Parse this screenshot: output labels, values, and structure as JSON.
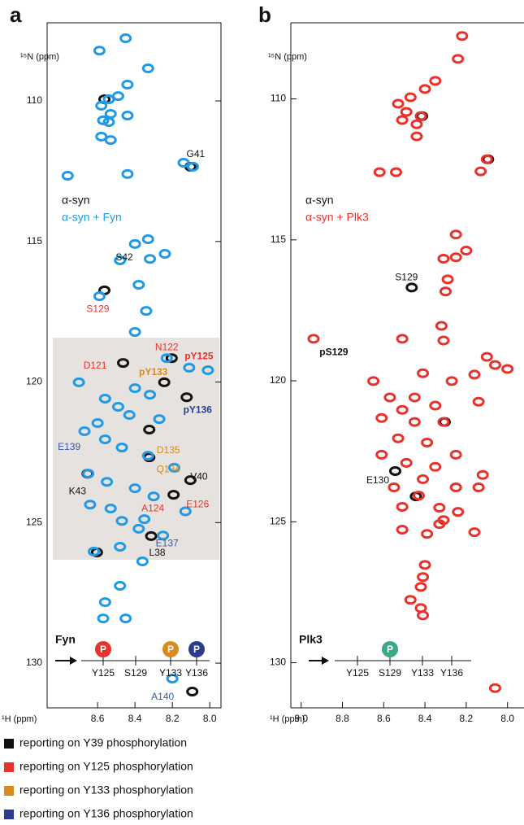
{
  "chart_data": [
    {
      "type": "scatter",
      "panel": "a",
      "x_label": "¹H (ppm)",
      "y_label": "¹⁵N (ppm)",
      "xlim": [
        8.87,
        7.94
      ],
      "ylim": [
        131.59,
        107.22
      ],
      "xticks": [
        8.6,
        8.4,
        8.2,
        {
          "value": 8,
          "label": "8.0"
        }
      ],
      "yticks": [
        110,
        115,
        120,
        125,
        130
      ],
      "series": [
        {
          "name": "α-syn",
          "color": "#111111",
          "x": [
            8.57,
            8.11,
            8.57,
            8.47,
            8.33,
            8.33,
            8.66,
            8.11,
            8.2,
            8.32,
            8.61,
            8.1,
            8.13,
            8.25,
            8.21
          ],
          "values": [
            109.94,
            112.34,
            116.74,
            119.32,
            121.69,
            122.68,
            123.26,
            123.49,
            124.01,
            125.48,
            126.06,
            131.01,
            120.54,
            120.01,
            119.15
          ]
        },
        {
          "name": "α-syn + Fyn",
          "color": "#1f9be6",
          "x": [
            8.59,
            8.45,
            8.33,
            8.44,
            8.49,
            8.54,
            8.58,
            8.53,
            8.57,
            8.54,
            8.58,
            8.53,
            8.44,
            8.76,
            8.14,
            8.09,
            8.44,
            8.33,
            8.4,
            8.24,
            8.32,
            8.48,
            8.38,
            8.59,
            8.34,
            8.4,
            8.23,
            8.11,
            8.01,
            8.7,
            8.4,
            8.32,
            8.56,
            8.49,
            8.43,
            8.6,
            8.27,
            8.67,
            8.56,
            8.47,
            8.33,
            8.19,
            8.65,
            8.55,
            8.4,
            8.3,
            8.64,
            8.53,
            8.47,
            8.38,
            8.62,
            8.48,
            8.36,
            8.56,
            8.45,
            8.57,
            8.48,
            8.2,
            8.35,
            8.25,
            8.13
          ],
          "values": [
            108.21,
            107.77,
            108.84,
            109.42,
            109.83,
            109.94,
            110.17,
            110.46,
            110.69,
            110.75,
            111.27,
            111.39,
            110.52,
            112.66,
            112.2,
            112.34,
            112.6,
            114.92,
            115.09,
            115.44,
            115.62,
            115.67,
            116.54,
            116.95,
            117.47,
            118.22,
            119.15,
            119.49,
            119.58,
            120.01,
            120.22,
            120.45,
            120.59,
            120.88,
            121.17,
            121.46,
            121.32,
            121.75,
            122.04,
            122.33,
            122.62,
            123.05,
            123.26,
            123.55,
            123.78,
            124.07,
            124.36,
            124.5,
            124.94,
            125.22,
            126.03,
            125.86,
            126.38,
            127.83,
            128.41,
            128.41,
            127.25,
            130.55,
            124.88,
            125.46,
            124.6
          ]
        }
      ],
      "annotations": [
        {
          "text": "G41",
          "color": "#111111",
          "x": 8.11,
          "y": 112.34
        },
        {
          "text": "S42",
          "color": "#111111",
          "x": 8.57,
          "y": 116.74
        },
        {
          "text": "S129",
          "color": "#e8322b",
          "x": 8.59,
          "y": 116.95
        },
        {
          "text": "N122",
          "color": "#e8322b",
          "x": 8.23,
          "y": 119.15
        },
        {
          "text": "pY125",
          "color": "#e8322b",
          "x": 8.21,
          "y": 119.15,
          "bold": true
        },
        {
          "text": "D121",
          "color": "#e8322b",
          "x": 8.47,
          "y": 119.32
        },
        {
          "text": "pY133",
          "color": "#d98a1c",
          "x": 8.25,
          "y": 120.01,
          "bold": true
        },
        {
          "text": "pY136",
          "color": "#2b3b8f",
          "x": 8.13,
          "y": 120.54,
          "bold": true
        },
        {
          "text": "D135",
          "color": "#d98a1c",
          "x": 8.33,
          "y": 121.69
        },
        {
          "text": "E139",
          "color": "#3a58a8",
          "x": 8.6,
          "y": 121.46
        },
        {
          "text": "Q134",
          "color": "#d98a1c",
          "x": 8.33,
          "y": 122.68
        },
        {
          "text": "V40",
          "color": "#111111",
          "x": 8.11,
          "y": 123.49
        },
        {
          "text": "K43",
          "color": "#111111",
          "x": 8.66,
          "y": 123.26
        },
        {
          "text": "A124",
          "color": "#e8322b",
          "x": 8.2,
          "y": 124.01
        },
        {
          "text": "E126",
          "color": "#e8322b",
          "x": 8.13,
          "y": 124.6
        },
        {
          "text": "E137",
          "color": "#3a58a8",
          "x": 8.25,
          "y": 125.46
        },
        {
          "text": "L38",
          "color": "#111111",
          "x": 8.32,
          "y": 125.48
        },
        {
          "text": "A140",
          "color": "#3a58a8",
          "x": 8.2,
          "y": 130.55
        }
      ],
      "track": {
        "enzyme": "Fyn",
        "sites": [
          {
            "name": "Y125",
            "mark": "P",
            "color": "#e8322b"
          },
          {
            "name": "S129"
          },
          {
            "name": "Y133",
            "mark": "P",
            "color": "#d98a1c"
          },
          {
            "name": "Y136",
            "mark": "P",
            "color": "#2b3b8f"
          }
        ]
      }
    },
    {
      "type": "scatter",
      "panel": "b",
      "x_label": "¹H (ppm)",
      "y_label": "¹⁵N (ppm)",
      "xlim": [
        9.05,
        7.92
      ],
      "ylim": [
        131.6,
        107.3
      ],
      "xticks": [
        {
          "value": 9,
          "label": "9.0"
        },
        8.8,
        8.6,
        8.4,
        8.2,
        {
          "value": 8,
          "label": "8.0"
        }
      ],
      "yticks": [
        110,
        115,
        120,
        125,
        130
      ],
      "series": [
        {
          "name": "α-syn",
          "color": "#111111",
          "x": [
            8.47,
            8.55,
            8.42,
            8.1,
            8.31,
            8.45
          ],
          "values": [
            116.69,
            123.2,
            110.61,
            112.14,
            121.46,
            124.1
          ]
        },
        {
          "name": "α-syn + Plk3",
          "color": "#e8322b",
          "x": [
            8.22,
            8.24,
            8.35,
            8.4,
            8.47,
            8.53,
            8.49,
            8.42,
            8.51,
            8.44,
            8.44,
            8.54,
            8.13,
            8.1,
            8.25,
            8.2,
            8.25,
            8.31,
            8.29,
            8.3,
            8.32,
            8.31,
            8.51,
            8.1,
            8.94,
            8.65,
            8.16,
            8.41,
            8.27,
            8.06,
            8.0,
            8.57,
            8.45,
            8.35,
            8.51,
            8.14,
            8.61,
            8.45,
            8.31,
            8.53,
            8.39,
            8.61,
            8.25,
            8.49,
            8.35,
            8.12,
            8.41,
            8.55,
            8.25,
            8.43,
            8.51,
            8.33,
            8.14,
            8.31,
            8.16,
            8.24,
            8.51,
            8.39,
            8.4,
            8.41,
            8.42,
            8.47,
            8.41,
            8.42,
            8.33,
            8.06,
            8.62
          ],
          "values": [
            107.77,
            108.58,
            109.36,
            109.65,
            109.94,
            110.17,
            110.46,
            110.61,
            110.75,
            110.9,
            111.33,
            112.6,
            112.57,
            112.14,
            114.81,
            115.38,
            115.62,
            115.67,
            116.4,
            116.83,
            118.05,
            118.57,
            118.51,
            119.15,
            118.51,
            120.01,
            119.78,
            119.73,
            120.01,
            119.44,
            119.58,
            120.59,
            120.59,
            120.88,
            121.03,
            120.74,
            121.32,
            121.46,
            121.46,
            122.04,
            122.19,
            122.62,
            122.62,
            122.91,
            123.05,
            123.34,
            123.49,
            123.78,
            123.78,
            124.07,
            124.47,
            124.5,
            123.78,
            124.94,
            125.37,
            124.65,
            125.28,
            125.43,
            126.53,
            126.96,
            127.31,
            127.77,
            128.32,
            128.06,
            125.08,
            130.9,
            112.6
          ]
        }
      ],
      "annotations": [
        {
          "text": "S129",
          "color": "#111111",
          "x": 8.47,
          "y": 116.69
        },
        {
          "text": "pS129",
          "color": "#111111",
          "x": 8.94,
          "y": 118.51,
          "bold": true
        },
        {
          "text": "E130",
          "color": "#111111",
          "x": 8.55,
          "y": 123.2
        }
      ],
      "track": {
        "enzyme": "Plk3",
        "sites": [
          {
            "name": "Y125"
          },
          {
            "name": "S129",
            "mark": "P",
            "color": "#3aa98b"
          },
          {
            "name": "Y133"
          },
          {
            "name": "Y136"
          }
        ]
      }
    }
  ],
  "key": [
    {
      "color": "#111111",
      "text": "reporting on Y39 phosphorylation"
    },
    {
      "color": "#e8322b",
      "text": "reporting on Y125 phosphorylation"
    },
    {
      "color": "#d98a1c",
      "text": "reporting on Y133 phosphorylation"
    },
    {
      "color": "#2b3b8f",
      "text": "reporting on Y136 phosphorylation"
    }
  ]
}
